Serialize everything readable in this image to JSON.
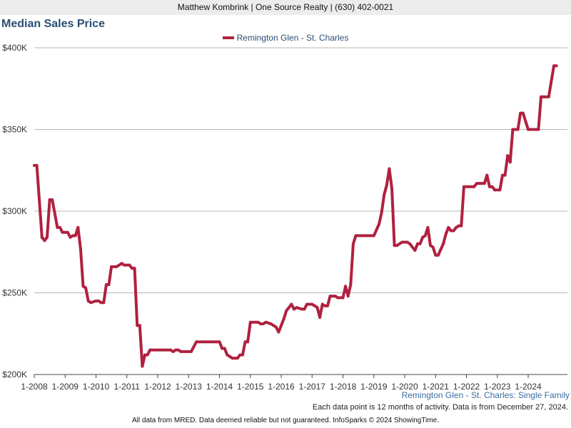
{
  "header": {
    "text": "Matthew Kombrink | One Source Realty | (630) 402-0021"
  },
  "chart_data": {
    "type": "line",
    "title": "Median Sales Price",
    "subtitle": "Remington Glen - St. Charles: Single Family",
    "note": "Each data point is 12 months of activity. Data is from December 27, 2024.",
    "footer": "All data from MRED. Data deemed reliable but not guaranteed. InfoSparks © 2024 ShowingTime.",
    "xlabel": "",
    "ylabel": "",
    "ylim": [
      200000,
      400000
    ],
    "xlim": [
      "2008-01",
      "2024-12"
    ],
    "grid": true,
    "legend_position": "top-center",
    "y_ticks": [
      {
        "value": 200000,
        "label": "$200K"
      },
      {
        "value": 250000,
        "label": "$250K"
      },
      {
        "value": 300000,
        "label": "$300K"
      },
      {
        "value": 350000,
        "label": "$350K"
      },
      {
        "value": 400000,
        "label": "$400K"
      }
    ],
    "x_ticks": [
      {
        "value": "2008-01",
        "label": "1-2008"
      },
      {
        "value": "2009-01",
        "label": "1-2009"
      },
      {
        "value": "2010-01",
        "label": "1-2010"
      },
      {
        "value": "2011-01",
        "label": "1-2011"
      },
      {
        "value": "2012-01",
        "label": "1-2012"
      },
      {
        "value": "2013-01",
        "label": "1-2013"
      },
      {
        "value": "2014-01",
        "label": "1-2014"
      },
      {
        "value": "2015-01",
        "label": "1-2015"
      },
      {
        "value": "2016-01",
        "label": "1-2016"
      },
      {
        "value": "2017-01",
        "label": "1-2017"
      },
      {
        "value": "2018-01",
        "label": "1-2018"
      },
      {
        "value": "2019-01",
        "label": "1-2019"
      },
      {
        "value": "2020-01",
        "label": "1-2020"
      },
      {
        "value": "2021-01",
        "label": "1-2021"
      },
      {
        "value": "2022-01",
        "label": "1-2022"
      },
      {
        "value": "2023-01",
        "label": "1-2023"
      },
      {
        "value": "2024-01",
        "label": "1-2024"
      }
    ],
    "colors": {
      "line": "#b0213f",
      "grid": "#b4b4b4",
      "axis": "#444444"
    },
    "series": [
      {
        "name": "Remington Glen - St. Charles",
        "points": [
          [
            "2008-01",
            328000
          ],
          [
            "2008-02",
            328000
          ],
          [
            "2008-04",
            284000
          ],
          [
            "2008-05",
            282000
          ],
          [
            "2008-06",
            284000
          ],
          [
            "2008-07",
            307000
          ],
          [
            "2008-08",
            307000
          ],
          [
            "2008-10",
            290000
          ],
          [
            "2008-11",
            290000
          ],
          [
            "2008-12",
            287000
          ],
          [
            "2009-02",
            287000
          ],
          [
            "2009-03",
            284000
          ],
          [
            "2009-04",
            285000
          ],
          [
            "2009-05",
            285000
          ],
          [
            "2009-06",
            290000
          ],
          [
            "2009-07",
            277000
          ],
          [
            "2009-08",
            254000
          ],
          [
            "2009-09",
            253000
          ],
          [
            "2009-10",
            245000
          ],
          [
            "2009-11",
            244000
          ],
          [
            "2010-01",
            245000
          ],
          [
            "2010-02",
            245000
          ],
          [
            "2010-03",
            244000
          ],
          [
            "2010-04",
            244000
          ],
          [
            "2010-05",
            255000
          ],
          [
            "2010-06",
            255000
          ],
          [
            "2010-07",
            266000
          ],
          [
            "2010-09",
            266000
          ],
          [
            "2010-11",
            268000
          ],
          [
            "2010-12",
            267000
          ],
          [
            "2011-02",
            267000
          ],
          [
            "2011-03",
            265000
          ],
          [
            "2011-04",
            265000
          ],
          [
            "2011-05",
            230000
          ],
          [
            "2011-06",
            230000
          ],
          [
            "2011-07",
            205000
          ],
          [
            "2011-08",
            212000
          ],
          [
            "2011-09",
            212000
          ],
          [
            "2011-10",
            215000
          ],
          [
            "2012-06",
            215000
          ],
          [
            "2012-07",
            214000
          ],
          [
            "2012-08",
            215000
          ],
          [
            "2012-09",
            215000
          ],
          [
            "2012-10",
            214000
          ],
          [
            "2013-02",
            214000
          ],
          [
            "2013-04",
            220000
          ],
          [
            "2014-01",
            220000
          ],
          [
            "2014-02",
            216000
          ],
          [
            "2014-03",
            216000
          ],
          [
            "2014-04",
            212000
          ],
          [
            "2014-05",
            211000
          ],
          [
            "2014-06",
            210000
          ],
          [
            "2014-08",
            210000
          ],
          [
            "2014-09",
            212000
          ],
          [
            "2014-10",
            212000
          ],
          [
            "2014-11",
            220000
          ],
          [
            "2014-12",
            220000
          ],
          [
            "2015-01",
            232000
          ],
          [
            "2015-04",
            232000
          ],
          [
            "2015-05",
            231000
          ],
          [
            "2015-06",
            231000
          ],
          [
            "2015-07",
            232000
          ],
          [
            "2015-09",
            231000
          ],
          [
            "2015-10",
            230000
          ],
          [
            "2015-11",
            229000
          ],
          [
            "2015-12",
            226000
          ],
          [
            "2016-01",
            230000
          ],
          [
            "2016-02",
            234000
          ],
          [
            "2016-03",
            239000
          ],
          [
            "2016-05",
            243000
          ],
          [
            "2016-06",
            240000
          ],
          [
            "2016-07",
            241000
          ],
          [
            "2016-09",
            240000
          ],
          [
            "2016-10",
            240000
          ],
          [
            "2016-11",
            243000
          ],
          [
            "2017-01",
            243000
          ],
          [
            "2017-03",
            241000
          ],
          [
            "2017-04",
            235000
          ],
          [
            "2017-05",
            243000
          ],
          [
            "2017-06",
            242000
          ],
          [
            "2017-07",
            242000
          ],
          [
            "2017-08",
            248000
          ],
          [
            "2017-10",
            248000
          ],
          [
            "2017-11",
            247000
          ],
          [
            "2018-01",
            247000
          ],
          [
            "2018-02",
            254000
          ],
          [
            "2018-03",
            248000
          ],
          [
            "2018-04",
            255000
          ],
          [
            "2018-05",
            280000
          ],
          [
            "2018-06",
            285000
          ],
          [
            "2018-12",
            285000
          ],
          [
            "2019-01",
            285000
          ],
          [
            "2019-03",
            292000
          ],
          [
            "2019-04",
            299000
          ],
          [
            "2019-05",
            310000
          ],
          [
            "2019-06",
            316000
          ],
          [
            "2019-07",
            326000
          ],
          [
            "2019-08",
            314000
          ],
          [
            "2019-09",
            279000
          ],
          [
            "2019-10",
            279000
          ],
          [
            "2019-12",
            281000
          ],
          [
            "2020-02",
            281000
          ],
          [
            "2020-03",
            280000
          ],
          [
            "2020-05",
            276000
          ],
          [
            "2020-06",
            280000
          ],
          [
            "2020-07",
            280000
          ],
          [
            "2020-08",
            284000
          ],
          [
            "2020-09",
            285000
          ],
          [
            "2020-10",
            290000
          ],
          [
            "2020-11",
            279000
          ],
          [
            "2020-12",
            278000
          ],
          [
            "2021-01",
            273000
          ],
          [
            "2021-02",
            273000
          ],
          [
            "2021-04",
            280000
          ],
          [
            "2021-05",
            286000
          ],
          [
            "2021-06",
            290000
          ],
          [
            "2021-07",
            288000
          ],
          [
            "2021-08",
            288000
          ],
          [
            "2021-09",
            290000
          ],
          [
            "2021-10",
            291000
          ],
          [
            "2021-11",
            291000
          ],
          [
            "2021-12",
            315000
          ],
          [
            "2022-04",
            315000
          ],
          [
            "2022-05",
            317000
          ],
          [
            "2022-06",
            317000
          ],
          [
            "2022-07",
            317000
          ],
          [
            "2022-08",
            317000
          ],
          [
            "2022-09",
            322000
          ],
          [
            "2022-10",
            315000
          ],
          [
            "2022-11",
            315000
          ],
          [
            "2022-12",
            313000
          ],
          [
            "2023-02",
            313000
          ],
          [
            "2023-03",
            322000
          ],
          [
            "2023-04",
            322000
          ],
          [
            "2023-05",
            334000
          ],
          [
            "2023-06",
            330000
          ],
          [
            "2023-07",
            350000
          ],
          [
            "2023-09",
            350000
          ],
          [
            "2023-10",
            360000
          ],
          [
            "2023-11",
            360000
          ],
          [
            "2024-01",
            350000
          ],
          [
            "2024-05",
            350000
          ],
          [
            "2024-06",
            370000
          ],
          [
            "2024-09",
            370000
          ],
          [
            "2024-11",
            389000
          ],
          [
            "2024-12",
            389000
          ]
        ]
      }
    ]
  }
}
